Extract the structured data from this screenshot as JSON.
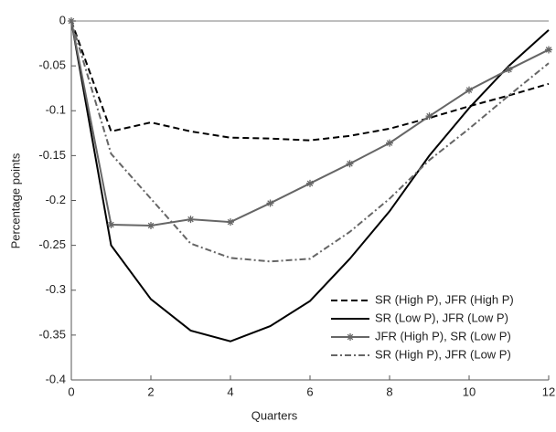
{
  "chart_data": {
    "type": "line",
    "xlabel": "Quarters",
    "ylabel": "Percentage points",
    "x": [
      0,
      1,
      2,
      3,
      4,
      5,
      6,
      7,
      8,
      9,
      10,
      11,
      12
    ],
    "xlim": [
      0,
      12
    ],
    "xticks": [
      0,
      2,
      4,
      6,
      8,
      10,
      12
    ],
    "ylim": [
      -0.4,
      0
    ],
    "yticks": [
      0,
      -0.05,
      -0.1,
      -0.15,
      -0.2,
      -0.25,
      -0.3,
      -0.35,
      -0.4
    ],
    "zero_line": true,
    "legend": "lower right",
    "series": [
      {
        "name": "SR (High P), JFR (High P)",
        "color": "#000000",
        "linestyle": "dashed",
        "marker": "none",
        "values": [
          0,
          -0.123,
          -0.113,
          -0.123,
          -0.13,
          -0.131,
          -0.133,
          -0.128,
          -0.12,
          -0.108,
          -0.095,
          -0.083,
          -0.07
        ]
      },
      {
        "name": "SR (Low P), JFR (Low P)",
        "color": "#000000",
        "linestyle": "solid",
        "marker": "none",
        "values": [
          0,
          -0.25,
          -0.31,
          -0.345,
          -0.357,
          -0.34,
          -0.312,
          -0.265,
          -0.212,
          -0.15,
          -0.097,
          -0.05,
          -0.01
        ]
      },
      {
        "name": "JFR (High P), SR (Low P)",
        "color": "#666666",
        "linestyle": "solid",
        "marker": "star",
        "values": [
          0,
          -0.227,
          -0.228,
          -0.221,
          -0.224,
          -0.203,
          -0.181,
          -0.159,
          -0.136,
          -0.106,
          -0.077,
          -0.054,
          -0.032
        ]
      },
      {
        "name": "SR (High P), JFR (Low P)",
        "color": "#666666",
        "linestyle": "dashdot",
        "marker": "none",
        "values": [
          0,
          -0.148,
          -0.198,
          -0.248,
          -0.264,
          -0.268,
          -0.265,
          -0.235,
          -0.198,
          -0.155,
          -0.12,
          -0.083,
          -0.047
        ]
      }
    ]
  }
}
